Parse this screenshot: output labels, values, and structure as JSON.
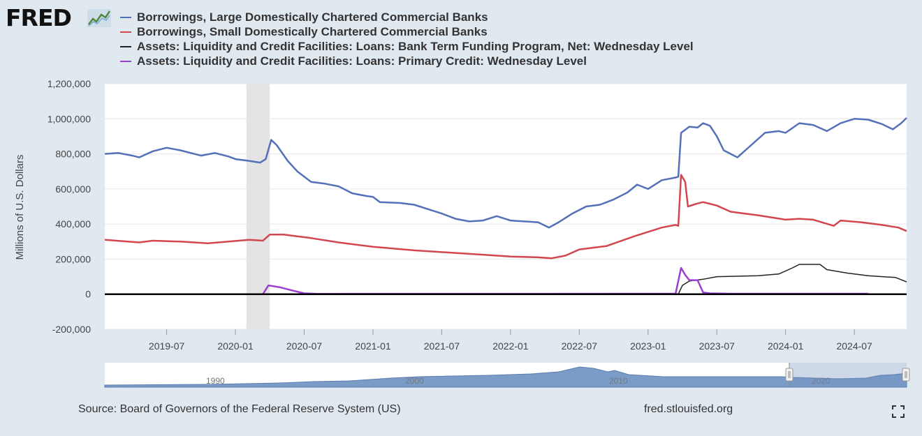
{
  "logo": {
    "text": "FRED",
    "icon": "fred-chart-icon"
  },
  "colors": {
    "large": "#5470b8",
    "small": "#d2474f",
    "btfp": "#222222",
    "primary": "#9b3fd3",
    "recession": "#e4e4e4",
    "navigator": "#6f90bf"
  },
  "chart_data": {
    "type": "line",
    "title": "",
    "ylabel": "Millions of U.S. Dollars",
    "xlabel": "",
    "ylim": [
      -200000,
      1200000
    ],
    "xlim": [
      2019.05,
      2024.88
    ],
    "yticks": [
      -200000,
      0,
      200000,
      400000,
      600000,
      800000,
      1000000,
      1200000
    ],
    "ytick_labels": [
      "-200,000",
      "0",
      "200,000",
      "400,000",
      "600,000",
      "800,000",
      "1,000,000",
      "1,200,000"
    ],
    "xticks": [
      2019.5,
      2020.0,
      2020.5,
      2021.0,
      2021.5,
      2022.0,
      2022.5,
      2023.0,
      2023.5,
      2024.0,
      2024.5
    ],
    "xtick_labels": [
      "2019-07",
      "2020-01",
      "2020-07",
      "2021-01",
      "2021-07",
      "2022-01",
      "2022-07",
      "2023-01",
      "2023-07",
      "2024-01",
      "2024-07"
    ],
    "recession": [
      2020.08,
      2020.25
    ],
    "grid": true,
    "series": [
      {
        "name": "Borrowings, Large Domestically Chartered Commercial Banks",
        "color": "#5470b8",
        "points": [
          [
            2019.05,
            800000
          ],
          [
            2019.15,
            805000
          ],
          [
            2019.25,
            790000
          ],
          [
            2019.3,
            780000
          ],
          [
            2019.4,
            815000
          ],
          [
            2019.5,
            835000
          ],
          [
            2019.6,
            820000
          ],
          [
            2019.7,
            800000
          ],
          [
            2019.75,
            790000
          ],
          [
            2019.85,
            805000
          ],
          [
            2019.95,
            785000
          ],
          [
            2020.0,
            770000
          ],
          [
            2020.1,
            760000
          ],
          [
            2020.18,
            750000
          ],
          [
            2020.22,
            770000
          ],
          [
            2020.26,
            880000
          ],
          [
            2020.3,
            850000
          ],
          [
            2020.38,
            760000
          ],
          [
            2020.45,
            700000
          ],
          [
            2020.55,
            640000
          ],
          [
            2020.65,
            630000
          ],
          [
            2020.75,
            615000
          ],
          [
            2020.85,
            575000
          ],
          [
            2020.95,
            560000
          ],
          [
            2021.0,
            555000
          ],
          [
            2021.05,
            525000
          ],
          [
            2021.2,
            520000
          ],
          [
            2021.3,
            510000
          ],
          [
            2021.4,
            485000
          ],
          [
            2021.5,
            460000
          ],
          [
            2021.6,
            430000
          ],
          [
            2021.7,
            415000
          ],
          [
            2021.8,
            420000
          ],
          [
            2021.9,
            445000
          ],
          [
            2022.0,
            420000
          ],
          [
            2022.1,
            415000
          ],
          [
            2022.2,
            410000
          ],
          [
            2022.28,
            380000
          ],
          [
            2022.35,
            410000
          ],
          [
            2022.45,
            460000
          ],
          [
            2022.55,
            500000
          ],
          [
            2022.65,
            510000
          ],
          [
            2022.75,
            540000
          ],
          [
            2022.85,
            580000
          ],
          [
            2022.92,
            625000
          ],
          [
            2023.0,
            600000
          ],
          [
            2023.1,
            650000
          ],
          [
            2023.2,
            665000
          ],
          [
            2023.22,
            670000
          ],
          [
            2023.24,
            920000
          ],
          [
            2023.3,
            955000
          ],
          [
            2023.36,
            950000
          ],
          [
            2023.4,
            975000
          ],
          [
            2023.45,
            960000
          ],
          [
            2023.5,
            900000
          ],
          [
            2023.55,
            820000
          ],
          [
            2023.6,
            800000
          ],
          [
            2023.65,
            780000
          ],
          [
            2023.75,
            850000
          ],
          [
            2023.85,
            920000
          ],
          [
            2023.95,
            930000
          ],
          [
            2024.0,
            920000
          ],
          [
            2024.1,
            975000
          ],
          [
            2024.2,
            965000
          ],
          [
            2024.3,
            930000
          ],
          [
            2024.4,
            975000
          ],
          [
            2024.5,
            1000000
          ],
          [
            2024.6,
            995000
          ],
          [
            2024.7,
            970000
          ],
          [
            2024.78,
            940000
          ],
          [
            2024.84,
            975000
          ],
          [
            2024.88,
            1005000
          ]
        ]
      },
      {
        "name": "Borrowings, Small Domestically Chartered Commercial Banks",
        "color": "#d2474f",
        "points": [
          [
            2019.05,
            310000
          ],
          [
            2019.3,
            295000
          ],
          [
            2019.4,
            305000
          ],
          [
            2019.6,
            300000
          ],
          [
            2019.8,
            290000
          ],
          [
            2019.95,
            300000
          ],
          [
            2020.1,
            310000
          ],
          [
            2020.2,
            305000
          ],
          [
            2020.25,
            340000
          ],
          [
            2020.35,
            340000
          ],
          [
            2020.55,
            320000
          ],
          [
            2020.75,
            295000
          ],
          [
            2021.0,
            270000
          ],
          [
            2021.3,
            250000
          ],
          [
            2021.6,
            235000
          ],
          [
            2021.8,
            225000
          ],
          [
            2022.0,
            215000
          ],
          [
            2022.2,
            210000
          ],
          [
            2022.3,
            205000
          ],
          [
            2022.4,
            220000
          ],
          [
            2022.5,
            255000
          ],
          [
            2022.7,
            275000
          ],
          [
            2022.9,
            330000
          ],
          [
            2023.1,
            380000
          ],
          [
            2023.2,
            395000
          ],
          [
            2023.22,
            390000
          ],
          [
            2023.24,
            680000
          ],
          [
            2023.27,
            640000
          ],
          [
            2023.29,
            500000
          ],
          [
            2023.35,
            515000
          ],
          [
            2023.4,
            525000
          ],
          [
            2023.5,
            505000
          ],
          [
            2023.6,
            470000
          ],
          [
            2023.8,
            450000
          ],
          [
            2024.0,
            425000
          ],
          [
            2024.1,
            430000
          ],
          [
            2024.2,
            425000
          ],
          [
            2024.35,
            390000
          ],
          [
            2024.4,
            420000
          ],
          [
            2024.55,
            410000
          ],
          [
            2024.7,
            395000
          ],
          [
            2024.82,
            380000
          ],
          [
            2024.88,
            360000
          ]
        ]
      },
      {
        "name": "Assets: Liquidity and Credit Facilities: Loans: Bank Term Funding Program, Net: Wednesday Level",
        "color": "#222222",
        "points": [
          [
            2019.05,
            0
          ],
          [
            2023.22,
            0
          ],
          [
            2023.25,
            50000
          ],
          [
            2023.3,
            75000
          ],
          [
            2023.4,
            85000
          ],
          [
            2023.5,
            100000
          ],
          [
            2023.8,
            105000
          ],
          [
            2023.95,
            115000
          ],
          [
            2024.05,
            150000
          ],
          [
            2024.1,
            170000
          ],
          [
            2024.25,
            170000
          ],
          [
            2024.3,
            140000
          ],
          [
            2024.45,
            120000
          ],
          [
            2024.6,
            105000
          ],
          [
            2024.8,
            95000
          ],
          [
            2024.88,
            70000
          ]
        ]
      },
      {
        "name": "Assets: Liquidity and Credit Facilities: Loans: Primary Credit: Wednesday Level",
        "color": "#9b3fd3",
        "points": [
          [
            2019.05,
            0
          ],
          [
            2020.2,
            0
          ],
          [
            2020.24,
            50000
          ],
          [
            2020.32,
            40000
          ],
          [
            2020.42,
            20000
          ],
          [
            2020.5,
            5000
          ],
          [
            2020.6,
            2000
          ],
          [
            2023.2,
            3000
          ],
          [
            2023.24,
            150000
          ],
          [
            2023.27,
            110000
          ],
          [
            2023.3,
            80000
          ],
          [
            2023.36,
            80000
          ],
          [
            2023.4,
            10000
          ],
          [
            2023.45,
            5000
          ],
          [
            2023.6,
            3000
          ],
          [
            2024.6,
            3000
          ]
        ]
      }
    ]
  },
  "navigator": {
    "labels": [
      "1990",
      "2000",
      "2010",
      "2020"
    ]
  },
  "footer": {
    "source": "Source: Board of Governors of the Federal Reserve System (US)",
    "site": "fred.stlouisfed.org"
  },
  "icons": {
    "fullscreen": "fullscreen-icon"
  }
}
